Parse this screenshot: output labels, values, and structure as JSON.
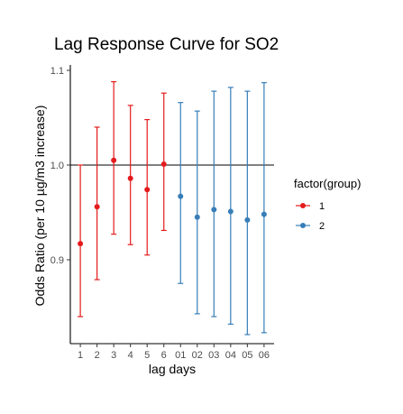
{
  "chart_data": {
    "type": "scatter",
    "title": "Lag Response Curve for SO2",
    "xlabel": "lag days",
    "ylabel": "Odds Ratio (per 10 µg/m3 increase)",
    "categories": [
      "1",
      "2",
      "3",
      "4",
      "5",
      "6",
      "01",
      "02",
      "03",
      "04",
      "05",
      "06"
    ],
    "ylim": [
      0.81,
      1.1
    ],
    "yticks": [
      0.9,
      1.0,
      1.1
    ],
    "ytick_labels": [
      "0.9",
      "1.0",
      "1.1"
    ],
    "reference_line": 1.0,
    "grid": false,
    "legend": {
      "title": "factor(group)",
      "position": "right"
    },
    "series": [
      {
        "name": "1",
        "color": "#E41A1C",
        "categories": [
          "1",
          "2",
          "3",
          "4",
          "5",
          "6"
        ],
        "values": [
          0.917,
          0.956,
          1.005,
          0.986,
          0.974,
          1.001
        ],
        "lower": [
          0.84,
          0.879,
          0.927,
          0.916,
          0.905,
          0.931
        ],
        "upper": [
          1.0,
          1.04,
          1.088,
          1.063,
          1.048,
          1.076
        ]
      },
      {
        "name": "2",
        "color": "#377EB8",
        "categories": [
          "01",
          "02",
          "03",
          "04",
          "05",
          "06"
        ],
        "values": [
          0.967,
          0.945,
          0.953,
          0.951,
          0.942,
          0.948
        ],
        "lower": [
          0.875,
          0.843,
          0.84,
          0.832,
          0.821,
          0.823
        ],
        "upper": [
          1.066,
          1.057,
          1.078,
          1.082,
          1.078,
          1.087
        ]
      }
    ]
  }
}
